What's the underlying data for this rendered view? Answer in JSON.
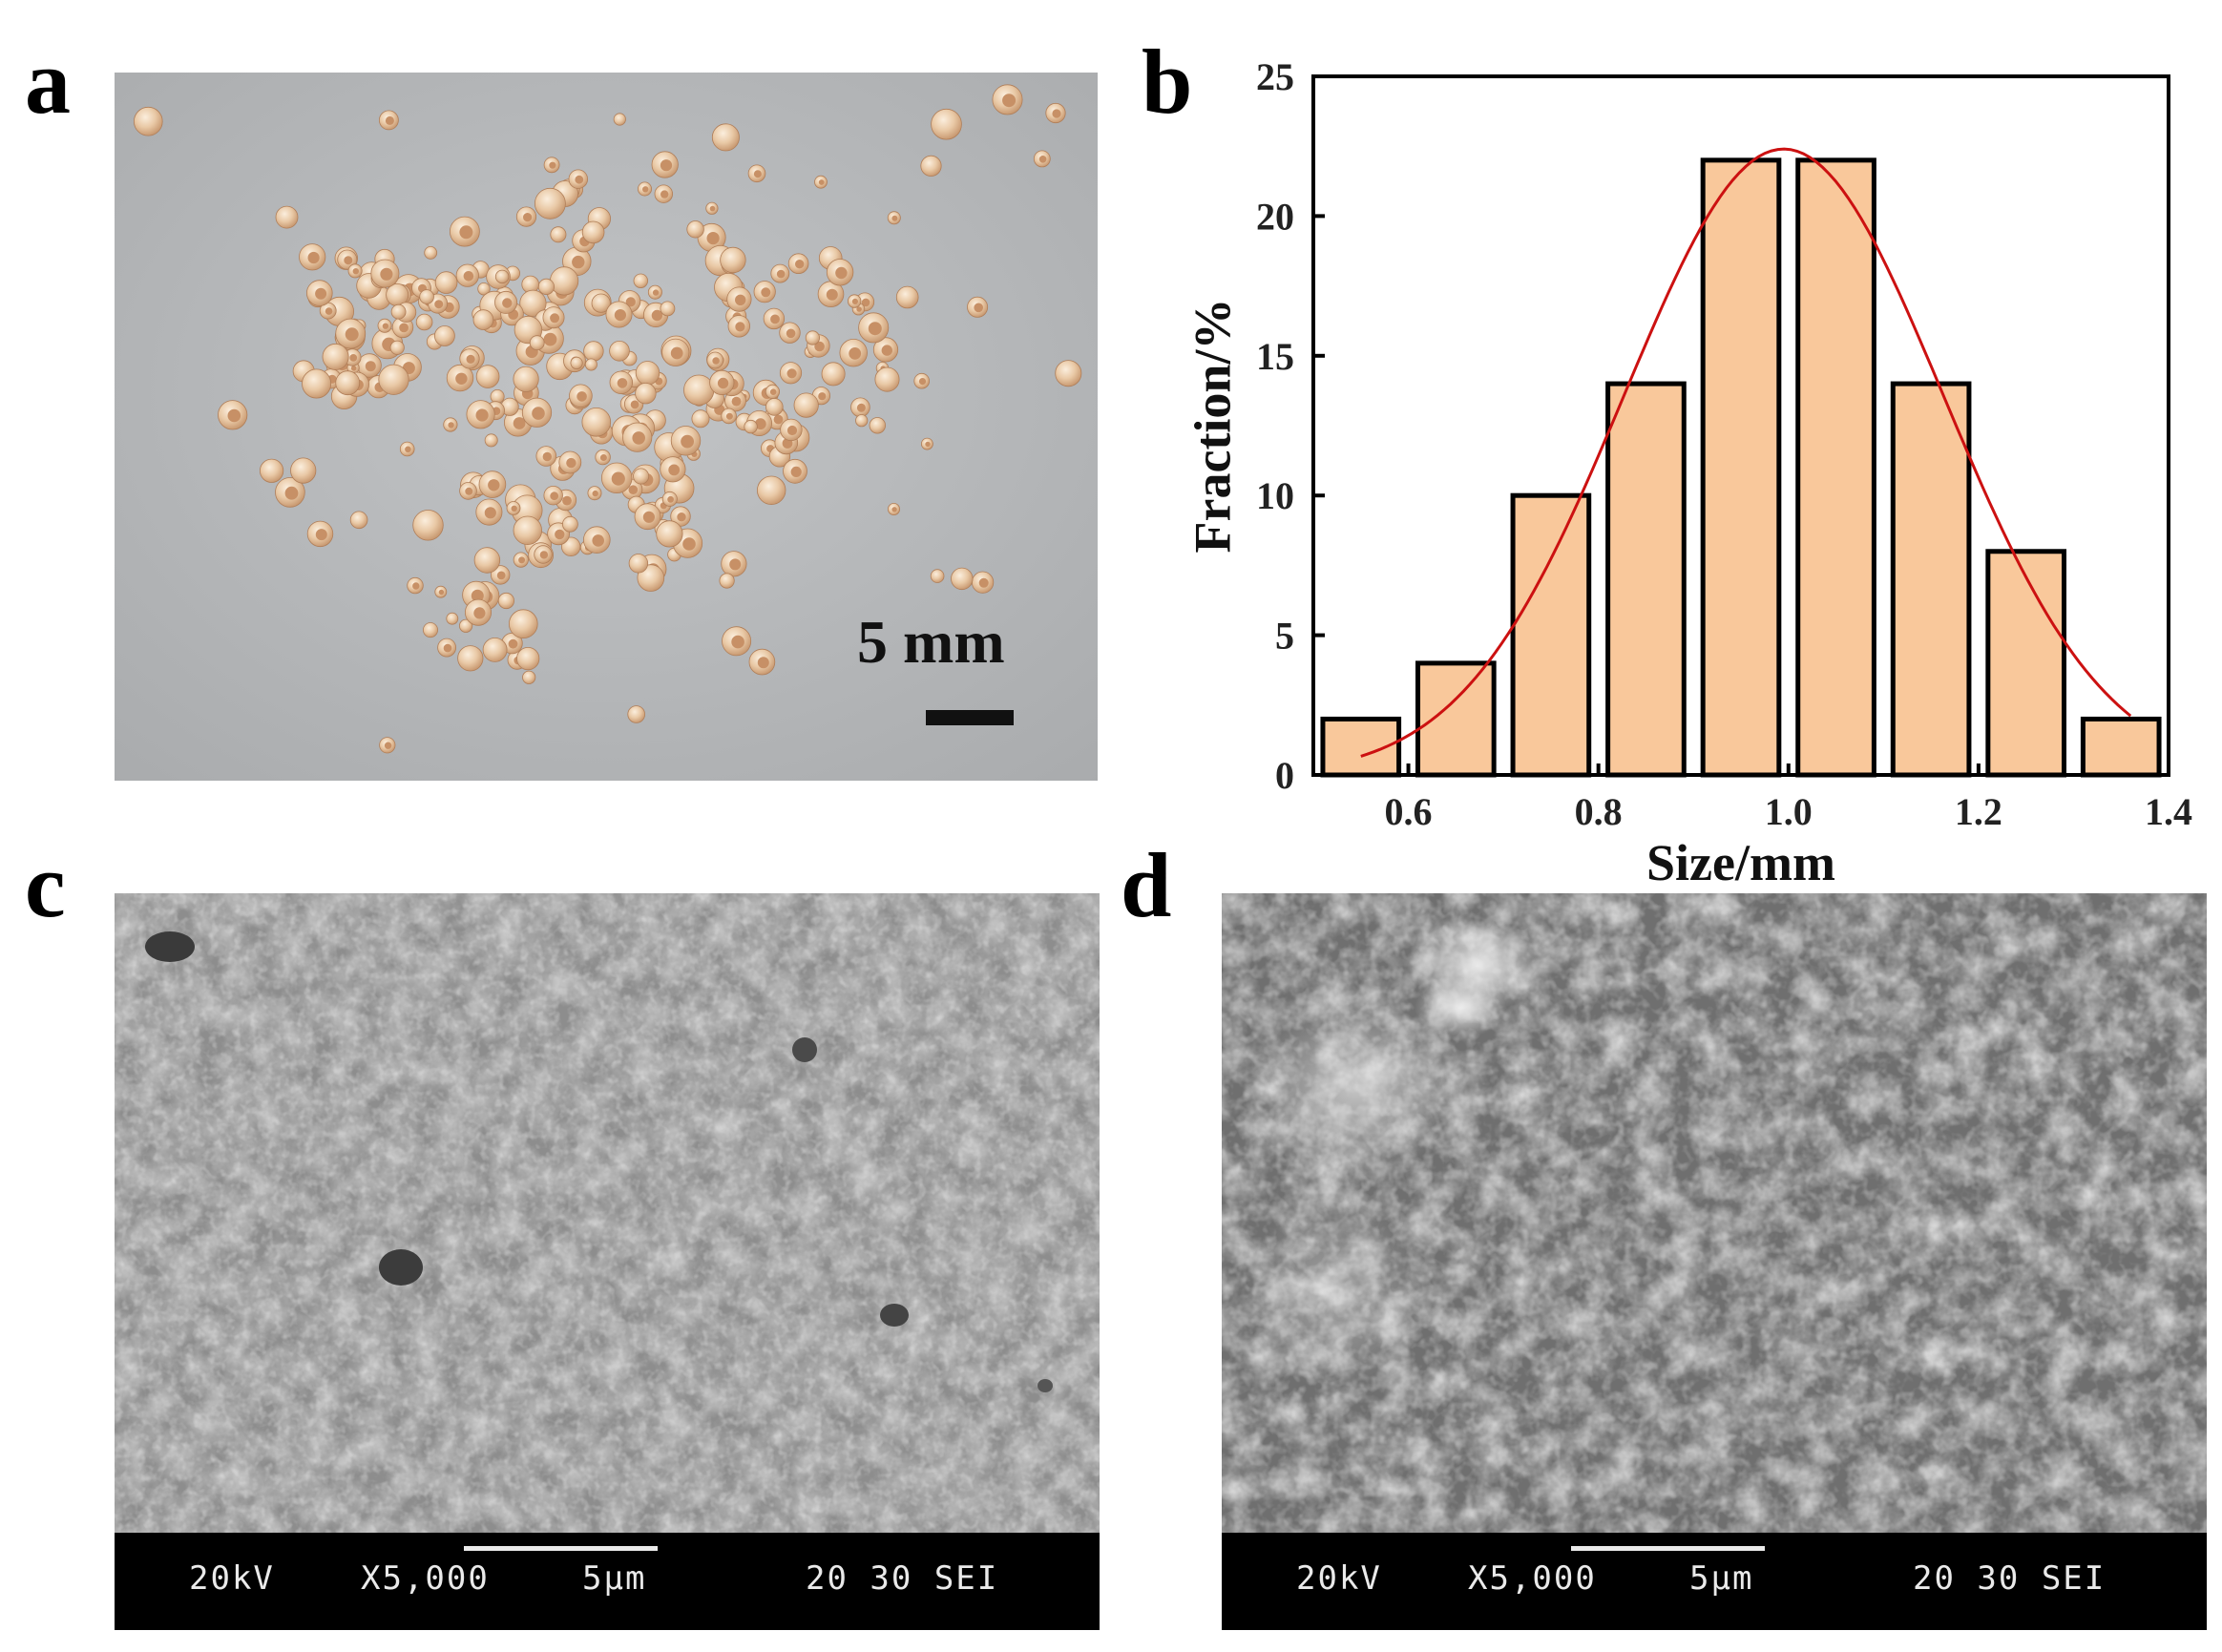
{
  "panels": {
    "a": {
      "letter": "a",
      "scale_label": "5 mm"
    },
    "b": {
      "letter": "b"
    },
    "c": {
      "letter": "c",
      "sem": {
        "kv": "20kV",
        "mag": "X5,000",
        "scale": "5µm",
        "info": "20 30 SEI"
      }
    },
    "d": {
      "letter": "d",
      "sem": {
        "kv": "20kV",
        "mag": "X5,000",
        "scale": "5µm",
        "info": "20 30 SEI"
      }
    }
  },
  "chart_data": {
    "type": "bar",
    "title": "",
    "xlabel": "Size/mm",
    "ylabel": "Fraction/%",
    "xlim": [
      0.5,
      1.4
    ],
    "ylim": [
      0,
      25
    ],
    "xticks": [
      0.6,
      0.8,
      1.0,
      1.2,
      1.4
    ],
    "yticks": [
      0,
      5,
      10,
      15,
      20,
      25
    ],
    "bar_width": 0.08,
    "bars": [
      {
        "x": 0.55,
        "value": 2
      },
      {
        "x": 0.65,
        "value": 4
      },
      {
        "x": 0.75,
        "value": 10
      },
      {
        "x": 0.85,
        "value": 14
      },
      {
        "x": 0.95,
        "value": 22
      },
      {
        "x": 1.05,
        "value": 22
      },
      {
        "x": 1.15,
        "value": 14
      },
      {
        "x": 1.25,
        "value": 8
      },
      {
        "x": 1.35,
        "value": 2
      }
    ],
    "fit_curve": {
      "type": "gaussian",
      "center": 0.995,
      "peak": 22.4,
      "sigma": 0.168,
      "x_range": [
        0.55,
        1.36
      ]
    },
    "colors": {
      "bar_fill": "#f9c89b",
      "bar_edge": "#000000",
      "curve": "#cc1111"
    }
  }
}
